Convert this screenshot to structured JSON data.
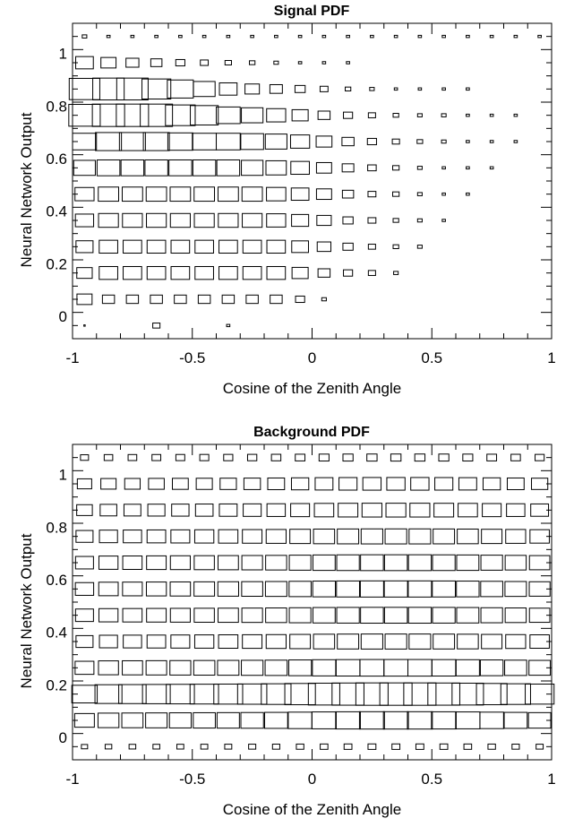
{
  "chart_data": [
    {
      "type": "box2d",
      "title": "Signal PDF",
      "xlabel": "Cosine of the Zenith Angle",
      "ylabel": "Neural Network Output",
      "xlim": [
        -1,
        1
      ],
      "ylim": [
        -0.1,
        1.1
      ],
      "x_ticks": [
        -1,
        -0.5,
        0,
        0.5,
        1
      ],
      "x_tick_labels": [
        "-1",
        "-0.5",
        "0",
        "0.5",
        "1"
      ],
      "y_ticks": [
        0,
        0.2,
        0.4,
        0.6,
        0.8,
        1
      ],
      "y_tick_labels": [
        "0",
        "0.2",
        "0.4",
        "0.6",
        "0.8",
        "1"
      ],
      "x_bin_centers": [
        -0.95,
        -0.85,
        -0.75,
        -0.65,
        -0.55,
        -0.45,
        -0.35,
        -0.25,
        -0.15,
        -0.05,
        0.05,
        0.15,
        0.25,
        0.35,
        0.45,
        0.55,
        0.65,
        0.75,
        0.85,
        0.95
      ],
      "y_bin_centers": [
        -0.05,
        0.05,
        0.15,
        0.25,
        0.35,
        0.45,
        0.55,
        0.65,
        0.75,
        0.85,
        0.95,
        1.05
      ],
      "cells": [
        [
          -0.95,
          -0.05,
          0.0
        ],
        [
          -0.65,
          -0.05,
          0.05
        ],
        [
          -0.35,
          -0.05,
          0.01
        ],
        [
          -0.95,
          0.05,
          0.22
        ],
        [
          -0.85,
          0.05,
          0.14
        ],
        [
          -0.75,
          0.05,
          0.14
        ],
        [
          -0.65,
          0.05,
          0.14
        ],
        [
          -0.55,
          0.05,
          0.14
        ],
        [
          -0.45,
          0.05,
          0.14
        ],
        [
          -0.35,
          0.05,
          0.14
        ],
        [
          -0.25,
          0.05,
          0.14
        ],
        [
          -0.15,
          0.05,
          0.14
        ],
        [
          -0.05,
          0.05,
          0.08
        ],
        [
          0.05,
          0.05,
          0.02
        ],
        [
          -0.95,
          0.15,
          0.23
        ],
        [
          -0.85,
          0.15,
          0.33
        ],
        [
          -0.75,
          0.15,
          0.33
        ],
        [
          -0.65,
          0.15,
          0.33
        ],
        [
          -0.55,
          0.15,
          0.33
        ],
        [
          -0.45,
          0.15,
          0.33
        ],
        [
          -0.35,
          0.15,
          0.33
        ],
        [
          -0.25,
          0.15,
          0.33
        ],
        [
          -0.15,
          0.15,
          0.33
        ],
        [
          -0.05,
          0.15,
          0.25
        ],
        [
          0.05,
          0.15,
          0.14
        ],
        [
          0.15,
          0.15,
          0.08
        ],
        [
          0.25,
          0.15,
          0.05
        ],
        [
          0.35,
          0.15,
          0.02
        ],
        [
          -0.95,
          0.25,
          0.28
        ],
        [
          -0.85,
          0.25,
          0.33
        ],
        [
          -0.75,
          0.25,
          0.33
        ],
        [
          -0.65,
          0.25,
          0.33
        ],
        [
          -0.55,
          0.25,
          0.33
        ],
        [
          -0.45,
          0.25,
          0.33
        ],
        [
          -0.35,
          0.25,
          0.33
        ],
        [
          -0.25,
          0.25,
          0.33
        ],
        [
          -0.15,
          0.25,
          0.33
        ],
        [
          -0.05,
          0.25,
          0.27
        ],
        [
          0.05,
          0.25,
          0.18
        ],
        [
          0.15,
          0.25,
          0.1
        ],
        [
          0.25,
          0.25,
          0.05
        ],
        [
          0.35,
          0.25,
          0.03
        ],
        [
          0.45,
          0.25,
          0.02
        ],
        [
          -0.95,
          0.35,
          0.32
        ],
        [
          -0.85,
          0.35,
          0.38
        ],
        [
          -0.75,
          0.35,
          0.38
        ],
        [
          -0.65,
          0.35,
          0.38
        ],
        [
          -0.55,
          0.35,
          0.38
        ],
        [
          -0.45,
          0.35,
          0.38
        ],
        [
          -0.35,
          0.35,
          0.38
        ],
        [
          -0.25,
          0.35,
          0.38
        ],
        [
          -0.15,
          0.35,
          0.35
        ],
        [
          -0.05,
          0.35,
          0.28
        ],
        [
          0.05,
          0.35,
          0.2
        ],
        [
          0.15,
          0.35,
          0.1
        ],
        [
          0.25,
          0.35,
          0.06
        ],
        [
          0.35,
          0.35,
          0.03
        ],
        [
          0.45,
          0.35,
          0.02
        ],
        [
          0.55,
          0.35,
          0.01
        ],
        [
          -0.95,
          0.45,
          0.35
        ],
        [
          -0.85,
          0.45,
          0.4
        ],
        [
          -0.75,
          0.45,
          0.4
        ],
        [
          -0.65,
          0.45,
          0.4
        ],
        [
          -0.55,
          0.45,
          0.4
        ],
        [
          -0.45,
          0.45,
          0.4
        ],
        [
          -0.35,
          0.45,
          0.4
        ],
        [
          -0.25,
          0.45,
          0.4
        ],
        [
          -0.15,
          0.45,
          0.36
        ],
        [
          -0.05,
          0.45,
          0.3
        ],
        [
          0.05,
          0.45,
          0.22
        ],
        [
          0.15,
          0.45,
          0.12
        ],
        [
          0.25,
          0.45,
          0.06
        ],
        [
          0.35,
          0.45,
          0.04
        ],
        [
          0.45,
          0.45,
          0.02
        ],
        [
          0.55,
          0.45,
          0.01
        ],
        [
          0.65,
          0.45,
          0.01
        ],
        [
          -0.95,
          0.55,
          0.45
        ],
        [
          -0.85,
          0.55,
          0.5
        ],
        [
          -0.75,
          0.55,
          0.5
        ],
        [
          -0.65,
          0.55,
          0.5
        ],
        [
          -0.55,
          0.55,
          0.5
        ],
        [
          -0.45,
          0.55,
          0.5
        ],
        [
          -0.35,
          0.55,
          0.5
        ],
        [
          -0.25,
          0.55,
          0.45
        ],
        [
          -0.15,
          0.55,
          0.4
        ],
        [
          -0.05,
          0.55,
          0.33
        ],
        [
          0.05,
          0.55,
          0.22
        ],
        [
          0.15,
          0.55,
          0.13
        ],
        [
          0.25,
          0.55,
          0.07
        ],
        [
          0.35,
          0.55,
          0.04
        ],
        [
          0.45,
          0.55,
          0.02
        ],
        [
          0.55,
          0.55,
          0.01
        ],
        [
          0.65,
          0.55,
          0.01
        ],
        [
          0.75,
          0.55,
          0.01
        ],
        [
          -0.95,
          0.65,
          0.55
        ],
        [
          -0.85,
          0.65,
          0.65
        ],
        [
          -0.75,
          0.65,
          0.65
        ],
        [
          -0.65,
          0.65,
          0.65
        ],
        [
          -0.55,
          0.65,
          0.6
        ],
        [
          -0.45,
          0.65,
          0.55
        ],
        [
          -0.35,
          0.65,
          0.55
        ],
        [
          -0.25,
          0.65,
          0.5
        ],
        [
          -0.15,
          0.65,
          0.45
        ],
        [
          -0.05,
          0.65,
          0.35
        ],
        [
          0.05,
          0.65,
          0.24
        ],
        [
          0.15,
          0.65,
          0.14
        ],
        [
          0.25,
          0.65,
          0.08
        ],
        [
          0.35,
          0.65,
          0.05
        ],
        [
          0.45,
          0.65,
          0.03
        ],
        [
          0.55,
          0.65,
          0.02
        ],
        [
          0.65,
          0.65,
          0.01
        ],
        [
          0.75,
          0.65,
          0.01
        ],
        [
          0.85,
          0.65,
          0.01
        ],
        [
          -0.95,
          0.75,
          0.95
        ],
        [
          -0.85,
          0.75,
          1.0
        ],
        [
          -0.75,
          0.75,
          1.0
        ],
        [
          -0.65,
          0.75,
          1.0
        ],
        [
          -0.55,
          0.75,
          0.85
        ],
        [
          -0.45,
          0.75,
          0.75
        ],
        [
          -0.35,
          0.75,
          0.55
        ],
        [
          -0.25,
          0.75,
          0.45
        ],
        [
          -0.15,
          0.75,
          0.35
        ],
        [
          -0.05,
          0.75,
          0.25
        ],
        [
          0.05,
          0.75,
          0.14
        ],
        [
          0.15,
          0.75,
          0.08
        ],
        [
          0.25,
          0.75,
          0.05
        ],
        [
          0.35,
          0.75,
          0.03
        ],
        [
          0.45,
          0.75,
          0.02
        ],
        [
          0.55,
          0.75,
          0.02
        ],
        [
          0.65,
          0.75,
          0.01
        ],
        [
          0.75,
          0.75,
          0.01
        ],
        [
          0.85,
          0.75,
          0.01
        ],
        [
          -0.95,
          0.85,
          0.9
        ],
        [
          -0.85,
          0.85,
          0.95
        ],
        [
          -0.75,
          0.85,
          0.95
        ],
        [
          -0.65,
          0.85,
          0.8
        ],
        [
          -0.55,
          0.85,
          0.65
        ],
        [
          -0.45,
          0.85,
          0.45
        ],
        [
          -0.35,
          0.85,
          0.3
        ],
        [
          -0.25,
          0.85,
          0.2
        ],
        [
          -0.15,
          0.85,
          0.15
        ],
        [
          -0.05,
          0.85,
          0.1
        ],
        [
          0.05,
          0.85,
          0.06
        ],
        [
          0.15,
          0.85,
          0.03
        ],
        [
          0.25,
          0.85,
          0.02
        ],
        [
          0.35,
          0.85,
          0.01
        ],
        [
          0.45,
          0.85,
          0.01
        ],
        [
          0.55,
          0.85,
          0.01
        ],
        [
          0.65,
          0.85,
          0.01
        ],
        [
          -0.95,
          0.95,
          0.3
        ],
        [
          -0.85,
          0.95,
          0.22
        ],
        [
          -0.75,
          0.95,
          0.16
        ],
        [
          -0.65,
          0.95,
          0.12
        ],
        [
          -0.55,
          0.95,
          0.08
        ],
        [
          -0.45,
          0.95,
          0.06
        ],
        [
          -0.35,
          0.95,
          0.04
        ],
        [
          -0.25,
          0.95,
          0.03
        ],
        [
          -0.15,
          0.95,
          0.02
        ],
        [
          -0.05,
          0.95,
          0.01
        ],
        [
          0.05,
          0.95,
          0.01
        ],
        [
          0.15,
          0.95,
          0.01
        ],
        [
          -0.95,
          1.05,
          0.02
        ],
        [
          -0.85,
          1.05,
          0.01
        ],
        [
          -0.75,
          1.05,
          0.01
        ],
        [
          -0.65,
          1.05,
          0.01
        ],
        [
          -0.55,
          1.05,
          0.01
        ],
        [
          -0.45,
          1.05,
          0.01
        ],
        [
          -0.35,
          1.05,
          0.01
        ],
        [
          -0.25,
          1.05,
          0.01
        ],
        [
          -0.15,
          1.05,
          0.01
        ],
        [
          -0.05,
          1.05,
          0.01
        ],
        [
          0.05,
          1.05,
          0.01
        ],
        [
          0.15,
          1.05,
          0.01
        ],
        [
          0.25,
          1.05,
          0.01
        ],
        [
          0.35,
          1.05,
          0.01
        ],
        [
          0.45,
          1.05,
          0.01
        ],
        [
          0.55,
          1.05,
          0.01
        ],
        [
          0.65,
          1.05,
          0.01
        ],
        [
          0.75,
          1.05,
          0.01
        ],
        [
          0.85,
          1.05,
          0.01
        ],
        [
          0.95,
          1.05,
          0.01
        ]
      ]
    },
    {
      "type": "box2d",
      "title": "Background PDF",
      "xlabel": "Cosine of the Zenith Angle",
      "ylabel": "Neural Network Output",
      "xlim": [
        -1,
        1
      ],
      "ylim": [
        -0.1,
        1.1
      ],
      "x_ticks": [
        -1,
        -0.5,
        0,
        0.5,
        1
      ],
      "x_tick_labels": [
        "-1",
        "-0.5",
        "0",
        "0.5",
        "1"
      ],
      "y_ticks": [
        0,
        0.2,
        0.4,
        0.6,
        0.8,
        1
      ],
      "y_tick_labels": [
        "0",
        "0.2",
        "0.4",
        "0.6",
        "0.8",
        "1"
      ],
      "x_bin_centers": [
        -0.95,
        -0.85,
        -0.75,
        -0.65,
        -0.55,
        -0.45,
        -0.35,
        -0.25,
        -0.15,
        -0.05,
        0.05,
        0.15,
        0.25,
        0.35,
        0.45,
        0.55,
        0.65,
        0.75,
        0.85,
        0.95
      ],
      "y_bin_centers": [
        -0.05,
        0.05,
        0.15,
        0.25,
        0.35,
        0.45,
        0.55,
        0.65,
        0.75,
        0.85,
        0.95,
        1.05
      ],
      "row_profile_y": [
        -0.05,
        0.05,
        0.15,
        0.25,
        0.35,
        0.45,
        0.55,
        0.65,
        0.75,
        0.85,
        0.95,
        1.05
      ],
      "row_profile_weight": [
        0.06,
        0.6,
        1.0,
        0.55,
        0.45,
        0.5,
        0.52,
        0.5,
        0.45,
        0.38,
        0.32,
        0.1
      ],
      "col_profile_x": [
        -0.95,
        -0.85,
        -0.75,
        -0.65,
        -0.55,
        -0.45,
        -0.35,
        -0.25,
        -0.15,
        -0.05,
        0.05,
        0.15,
        0.25,
        0.35,
        0.45,
        0.55,
        0.65,
        0.75,
        0.85,
        0.95
      ],
      "col_profile_weight": [
        0.62,
        0.7,
        0.72,
        0.74,
        0.76,
        0.78,
        0.8,
        0.82,
        0.85,
        0.9,
        0.95,
        0.98,
        1.0,
        1.0,
        1.0,
        0.98,
        0.95,
        0.9,
        0.85,
        0.8
      ]
    }
  ]
}
